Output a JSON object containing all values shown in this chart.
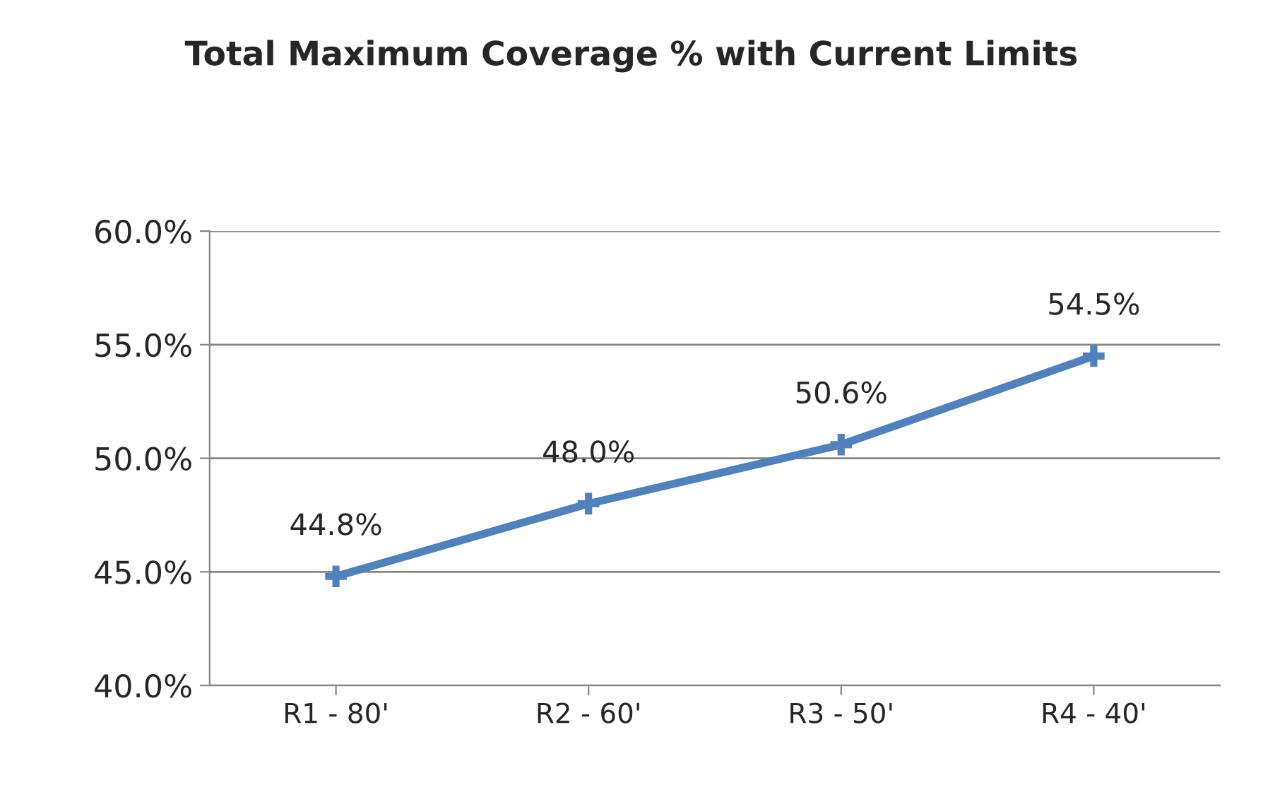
{
  "chart_data": {
    "type": "line",
    "title": "Total Maximum Coverage % with Current Limits",
    "categories": [
      "R1 - 80'",
      "R2 - 60'",
      "R3 - 50'",
      "R4 - 40'"
    ],
    "series": [
      {
        "color": "#4f81bd",
        "values": [
          44.8,
          48.0,
          50.6,
          54.5
        ],
        "value_labels": [
          "44.8%",
          "48.0%",
          "50.6%",
          "54.5%"
        ]
      }
    ],
    "ylim": [
      40,
      60
    ],
    "yticks": [
      {
        "value": 40,
        "label": "40.0%"
      },
      {
        "value": 45,
        "label": "45.0%"
      },
      {
        "value": 50,
        "label": "50.0%"
      },
      {
        "value": 55,
        "label": "55.0%"
      },
      {
        "value": 60,
        "label": "60.0%"
      }
    ],
    "grid": "y",
    "marker": "cross",
    "line_style": "solid"
  }
}
